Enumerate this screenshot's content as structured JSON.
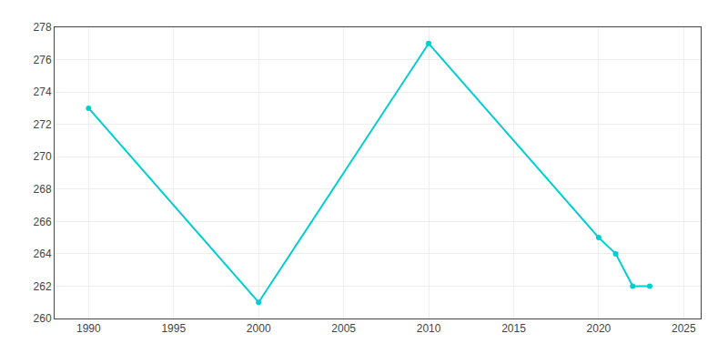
{
  "chart_data": {
    "type": "line",
    "x": [
      1990,
      2000,
      2010,
      2020,
      2021,
      2022,
      2023
    ],
    "values": [
      273,
      261,
      277,
      265,
      264,
      262,
      262
    ],
    "color": "#00CED1",
    "marker": "circle",
    "xlim": [
      1988,
      2026
    ],
    "ylim": [
      260,
      278
    ],
    "xticks": [
      1990,
      1995,
      2000,
      2005,
      2010,
      2015,
      2020,
      2025
    ],
    "yticks": [
      260,
      262,
      264,
      266,
      268,
      270,
      272,
      274,
      276,
      278
    ],
    "grid": true
  }
}
